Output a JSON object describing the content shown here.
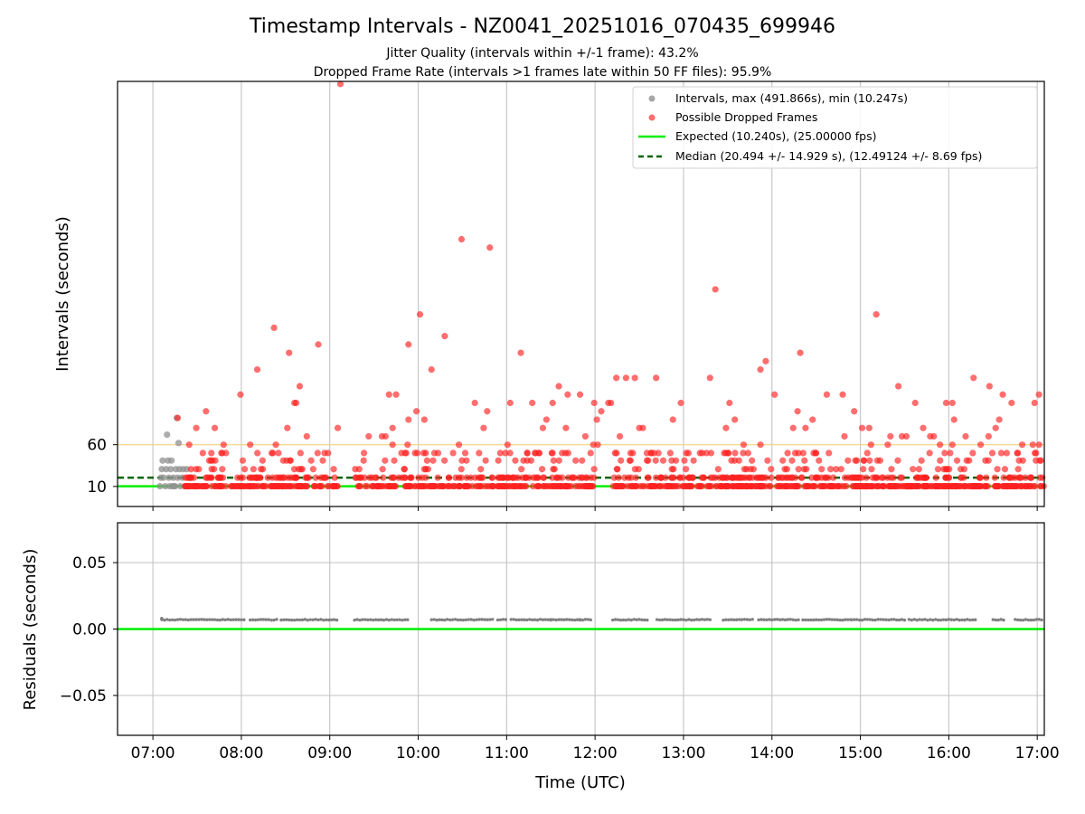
{
  "chart_data": [
    {
      "type": "scatter",
      "title": "Timestamp Intervals - NZ0041_20251016_070435_699946",
      "subtitle_lines": [
        "Jitter Quality (intervals within +/-1 frame): 43.2%",
        "Dropped Frame Rate (intervals >1 frames late within 50 FF files): 95.9%"
      ],
      "xlabel": "",
      "ylabel": "Intervals (seconds)",
      "x_unit": "hours UTC",
      "xlim": [
        6.6,
        17.08
      ],
      "ylim": [
        -14,
        495
      ],
      "ytick_values": [
        10,
        60
      ],
      "ytick_labels": [
        "10",
        "60"
      ],
      "grid": "vertical",
      "legend_position": "top-right",
      "legend": [
        "Intervals, max (491.866s), min (10.247s)",
        "Possible Dropped Frames",
        "Expected (10.240s), (25.00000 fps)",
        "Median (20.494 +/- 14.929 s), (12.49124 +/- 8.69 fps)"
      ],
      "reference_lines": [
        {
          "name": "60 s threshold",
          "y": 60,
          "color": "#f5d27a",
          "style": "solid"
        },
        {
          "name": "Expected",
          "y": 10.24,
          "color": "#00ee00",
          "style": "solid"
        },
        {
          "name": "Median",
          "y": 20.494,
          "color": "#006400",
          "style": "dashed"
        }
      ],
      "series": [
        {
          "name": "Intervals",
          "color": "#909090",
          "note": "grey points, mostly hidden under red in the main band",
          "points": [
            [
              7.08,
              10.3
            ],
            [
              7.09,
              20.5
            ],
            [
              7.1,
              30.7
            ],
            [
              7.11,
              41
            ],
            [
              7.12,
              20.5
            ],
            [
              7.14,
              10.3
            ],
            [
              7.15,
              30.7
            ],
            [
              7.16,
              72
            ],
            [
              7.17,
              41
            ],
            [
              7.18,
              20.5
            ],
            [
              7.19,
              10.3
            ],
            [
              7.2,
              30.7
            ],
            [
              7.21,
              41
            ],
            [
              7.22,
              10.3
            ],
            [
              7.23,
              20.5
            ],
            [
              7.24,
              10.3
            ],
            [
              7.25,
              10.3
            ],
            [
              7.26,
              30.7
            ],
            [
              7.27,
              92
            ],
            [
              7.28,
              20.5
            ],
            [
              7.29,
              62
            ],
            [
              7.3,
              30.7
            ],
            [
              7.31,
              10.3
            ],
            [
              7.33,
              20.5
            ],
            [
              7.34,
              30.7
            ],
            [
              7.36,
              10.3
            ],
            [
              7.38,
              30.7
            ]
          ]
        },
        {
          "name": "Possible Dropped Frames",
          "color": "#ff2020",
          "points_top": [
            [
              9.12,
              491.9
            ],
            [
              10.49,
              306
            ],
            [
              10.81,
              296
            ],
            [
              13.36,
              246
            ],
            [
              10.02,
              216
            ],
            [
              15.18,
              216
            ],
            [
              8.37,
              200
            ],
            [
              10.3,
              190
            ],
            [
              8.87,
              180
            ],
            [
              9.89,
              180
            ],
            [
              14.32,
              170
            ],
            [
              11.16,
              170
            ],
            [
              8.54,
              170
            ],
            [
              13.93,
              160
            ],
            [
              8.18,
              150
            ],
            [
              10.15,
              150
            ],
            [
              13.87,
              150
            ],
            [
              12.24,
              140
            ],
            [
              12.35,
              140
            ],
            [
              12.45,
              140
            ],
            [
              12.69,
              140
            ],
            [
              13.3,
              140
            ],
            [
              16.28,
              140
            ],
            [
              11.59,
              130
            ],
            [
              8.66,
              130
            ],
            [
              15.43,
              130
            ],
            [
              16.46,
              130
            ],
            [
              7.99,
              120
            ],
            [
              8.62,
              110
            ],
            [
              8.6,
              110
            ],
            [
              10.64,
              110
            ],
            [
              11.04,
              110
            ],
            [
              11.69,
              120
            ],
            [
              11.52,
              110
            ],
            [
              11.83,
              120
            ],
            [
              11.99,
              110
            ],
            [
              12.15,
              110
            ],
            [
              12.18,
              110
            ],
            [
              12.97,
              110
            ],
            [
              13.52,
              110
            ],
            [
              14.03,
              120
            ],
            [
              14.62,
              120
            ],
            [
              14.8,
              120
            ],
            [
              15.97,
              110
            ],
            [
              16.61,
              120
            ],
            [
              16.04,
              110
            ],
            [
              16.71,
              110
            ],
            [
              16.97,
              110
            ],
            [
              17.02,
              120
            ],
            [
              9.67,
              120
            ],
            [
              9.75,
              120
            ],
            [
              9.98,
              100
            ],
            [
              7.6,
              100
            ],
            [
              10.78,
              100
            ],
            [
              11.29,
              110
            ],
            [
              12.07,
              100
            ],
            [
              14.29,
              100
            ],
            [
              14.93,
              100
            ],
            [
              15.62,
              110
            ],
            [
              7.28,
              92
            ],
            [
              9.89,
              90
            ],
            [
              10.07,
              90
            ],
            [
              16.06,
              90
            ],
            [
              16.57,
              90
            ],
            [
              11.45,
              90
            ],
            [
              12.88,
              90
            ],
            [
              13.58,
              90
            ],
            [
              14.46,
              90
            ],
            [
              11.41,
              80
            ],
            [
              15.1,
              80
            ],
            [
              10.74,
              80
            ],
            [
              12.54,
              80
            ],
            [
              7.49,
              80
            ],
            [
              7.7,
              80
            ],
            [
              8.52,
              80
            ],
            [
              9.09,
              80
            ],
            [
              9.71,
              80
            ],
            [
              11.67,
              80
            ],
            [
              12.5,
              80
            ],
            [
              12.02,
              90
            ],
            [
              13.48,
              80
            ],
            [
              14.24,
              80
            ],
            [
              14.38,
              80
            ],
            [
              15.02,
              80
            ],
            [
              15.71,
              80
            ],
            [
              16.53,
              80
            ],
            [
              8.74,
              70
            ],
            [
              9.44,
              70
            ],
            [
              9.59,
              70
            ],
            [
              9.63,
              70
            ],
            [
              11.89,
              70
            ],
            [
              12.28,
              70
            ],
            [
              14.82,
              70
            ],
            [
              15.34,
              70
            ],
            [
              15.47,
              70
            ],
            [
              15.52,
              70
            ],
            [
              15.79,
              70
            ],
            [
              15.83,
              70
            ],
            [
              16.19,
              70
            ],
            [
              16.45,
              70
            ],
            [
              16.36,
              60
            ],
            [
              7.41,
              60
            ],
            [
              7.8,
              60
            ],
            [
              8.1,
              60
            ],
            [
              8.39,
              60
            ],
            [
              9.71,
              60
            ],
            [
              9.88,
              60
            ],
            [
              10.46,
              60
            ],
            [
              11.01,
              60
            ],
            [
              11.98,
              60
            ],
            [
              12.03,
              60
            ],
            [
              13.68,
              60
            ],
            [
              13.87,
              60
            ],
            [
              15.12,
              60
            ],
            [
              15.31,
              60
            ],
            [
              15.9,
              60
            ],
            [
              16.04,
              60
            ],
            [
              16.83,
              60
            ],
            [
              16.95,
              60
            ],
            [
              17.02,
              60
            ]
          ],
          "band_points_count_estimate": 1200,
          "band_range": [
            10.3,
            50
          ]
        }
      ]
    },
    {
      "type": "scatter",
      "title": "",
      "xlabel": "Time (UTC)",
      "ylabel": "Residuals (seconds)",
      "x_unit": "hours UTC",
      "xlim": [
        6.6,
        17.08
      ],
      "ylim": [
        -0.08,
        0.08
      ],
      "ytick_values": [
        0.05,
        0.0,
        -0.05
      ],
      "ytick_labels": [
        "0.05",
        "0.00",
        "−0.05"
      ],
      "xtick_labels": [
        "07:00",
        "08:00",
        "09:00",
        "10:00",
        "11:00",
        "12:00",
        "13:00",
        "14:00",
        "15:00",
        "16:00",
        "17:00"
      ],
      "grid": "both",
      "reference_lines": [
        {
          "name": "Zero",
          "y": 0.0,
          "color": "#00ee00",
          "style": "solid"
        }
      ],
      "series": [
        {
          "name": "Residuals",
          "color": "#808080",
          "approx_value": 0.007,
          "first_value": 0.008,
          "segments_hours": [
            [
              7.1,
              8.05
            ],
            [
              8.1,
              8.4
            ],
            [
              8.45,
              9.1
            ],
            [
              9.28,
              9.9
            ],
            [
              10.15,
              10.85
            ],
            [
              10.9,
              11.0
            ],
            [
              11.05,
              11.5
            ],
            [
              11.5,
              11.85
            ],
            [
              11.8,
              11.95
            ],
            [
              12.2,
              12.6
            ],
            [
              12.7,
              13.3
            ],
            [
              13.45,
              13.8
            ],
            [
              13.85,
              14.3
            ],
            [
              14.35,
              14.9
            ],
            [
              14.9,
              15.5
            ],
            [
              15.55,
              16.3
            ],
            [
              16.5,
              16.65
            ],
            [
              16.75,
              17.08
            ]
          ]
        }
      ]
    }
  ]
}
